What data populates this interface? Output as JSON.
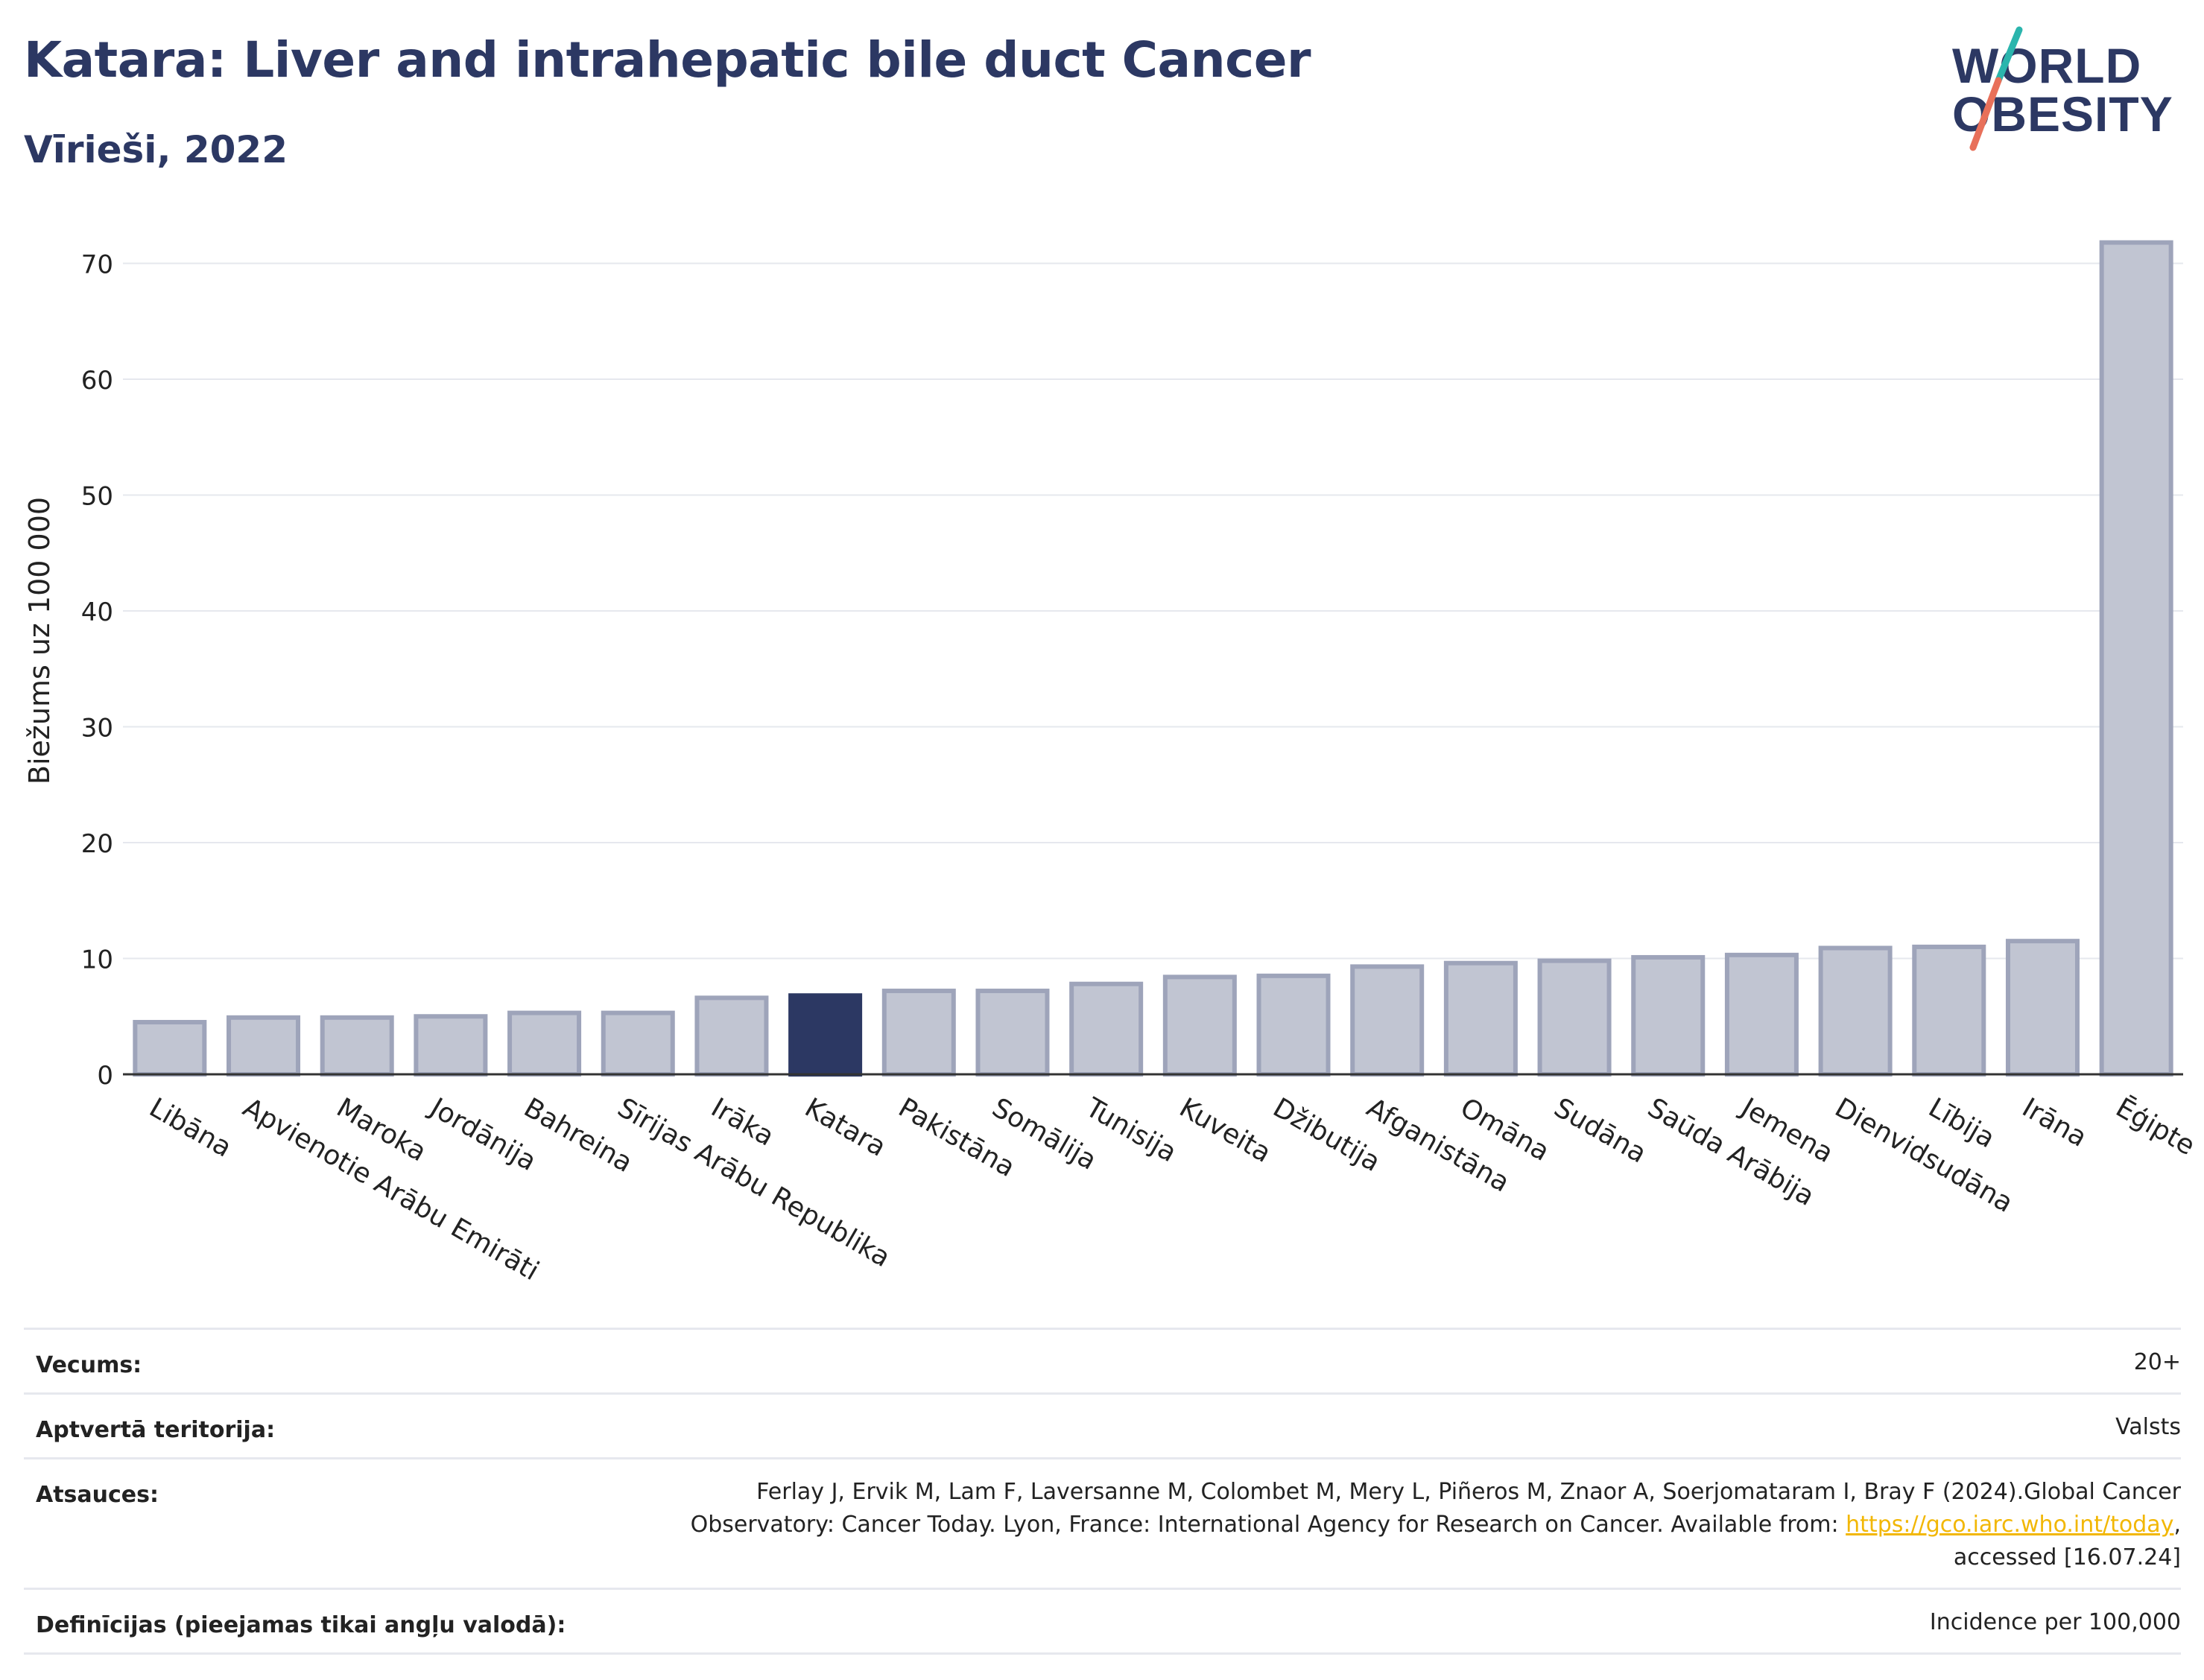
{
  "header": {
    "title": "Katara: Liver and intrahepatic bile duct Cancer",
    "subtitle": "Vīrieši, 2022"
  },
  "logo": {
    "line1": "WORLD",
    "line2": "OBESITY",
    "colors": {
      "text": "#2c3863",
      "slash_top": "#2bb5ad",
      "slash_bottom": "#e8705a"
    }
  },
  "chart_data": {
    "type": "bar",
    "ylabel": "Biežums uz 100 000",
    "ylim": [
      0,
      75
    ],
    "yticks": [
      0,
      10,
      20,
      30,
      40,
      50,
      60,
      70
    ],
    "grid": true,
    "categories": [
      "Libāna",
      "Apvienotie Arābu Emirāti",
      "Maroka",
      "Jordānija",
      "Bahreina",
      "Sīrijas Arābu Republika",
      "Irāka",
      "Katara",
      "Pakistāna",
      "Somālija",
      "Tunisija",
      "Kuveita",
      "Džibutija",
      "Afganistāna",
      "Omāna",
      "Sudāna",
      "Saūda Arābija",
      "Jemena",
      "Dienvidsudāna",
      "Lībija",
      "Irāna",
      "Ēģipte"
    ],
    "values": [
      4.5,
      4.9,
      4.9,
      5.0,
      5.3,
      5.3,
      6.6,
      6.8,
      7.2,
      7.2,
      7.8,
      8.4,
      8.5,
      9.3,
      9.6,
      9.8,
      10.1,
      10.3,
      10.9,
      11.0,
      11.5,
      71.8
    ],
    "highlight": "Katara",
    "colors": {
      "bar": "#c1c5d2",
      "bar_border": "#9ea4ba",
      "highlight": "#2c3863"
    }
  },
  "info": {
    "rows": [
      {
        "label": "Vecums:",
        "value": "20+"
      },
      {
        "label": "Aptvertā teritorija:",
        "value": "Valsts"
      },
      {
        "label": "Atsauces:",
        "value_lines": [
          "Ferlay J, Ervik M, Lam F, Laversanne M, Colombet M, Mery L, Piñeros M, Znaor A, Soerjomataram I, Bray F (2024).Global Cancer",
          "Observatory: Cancer Today. Lyon, France: International Agency for Research on Cancer. Available from: "
        ],
        "link": "https://gco.iarc.who.int/today",
        "after_link": ",",
        "tail": "accessed [16.07.24]"
      },
      {
        "label": "Definīcijas (pieejamas tikai angļu valodā):",
        "value": "Incidence per 100,000"
      }
    ]
  }
}
